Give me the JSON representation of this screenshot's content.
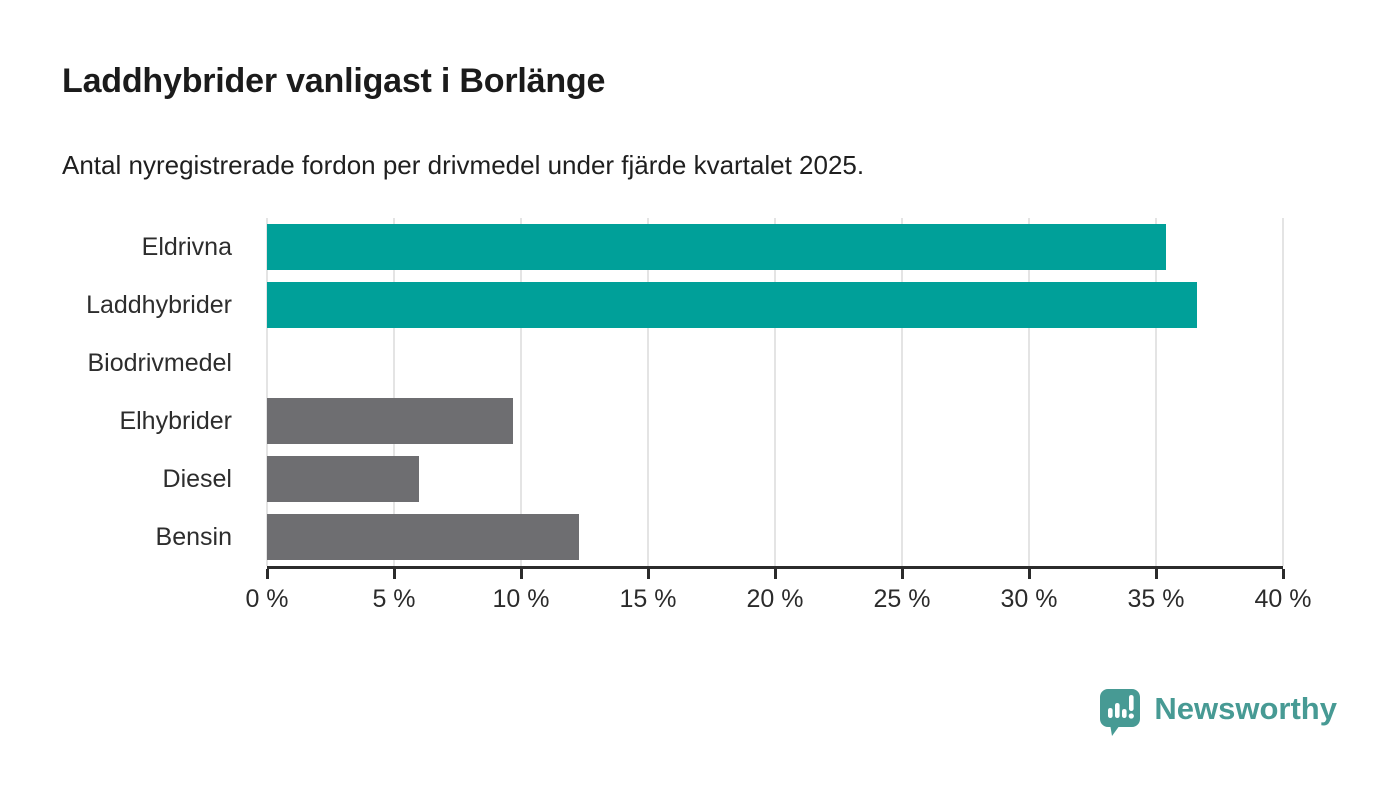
{
  "title": "Laddhybrider vanligast i Borlänge",
  "subtitle": "Antal nyregistrerade fordon per drivmedel under fjärde kvartalet 2025.",
  "chart_data": {
    "type": "bar",
    "orientation": "horizontal",
    "categories": [
      "Eldrivna",
      "Laddhybrider",
      "Biodrivmedel",
      "Elhybrider",
      "Diesel",
      "Bensin"
    ],
    "values": [
      35.4,
      36.6,
      0,
      9.7,
      6.0,
      12.3
    ],
    "unit": "%",
    "bar_colors": [
      "#00a099",
      "#00a099",
      "#6e6e71",
      "#6e6e71",
      "#6e6e71",
      "#6e6e71"
    ],
    "highlight_color": "#00a099",
    "default_color": "#6e6e71",
    "xlim": [
      0,
      40
    ],
    "x_tick_values": [
      0,
      5,
      10,
      15,
      20,
      25,
      30,
      35,
      40
    ],
    "x_tick_labels": [
      "0 %",
      "5 %",
      "10 %",
      "15 %",
      "20 %",
      "25 %",
      "30 %",
      "35 %",
      "40 %"
    ],
    "grid": "vertical",
    "gridline_color": "#e4e4e4",
    "axis_color": "#2b2b2b",
    "legend": "none"
  },
  "branding": {
    "logo_text": "Newsworthy",
    "logo_color": "#479a94",
    "logo_icon": "newsworthy-bar-chart-bubble-icon"
  }
}
